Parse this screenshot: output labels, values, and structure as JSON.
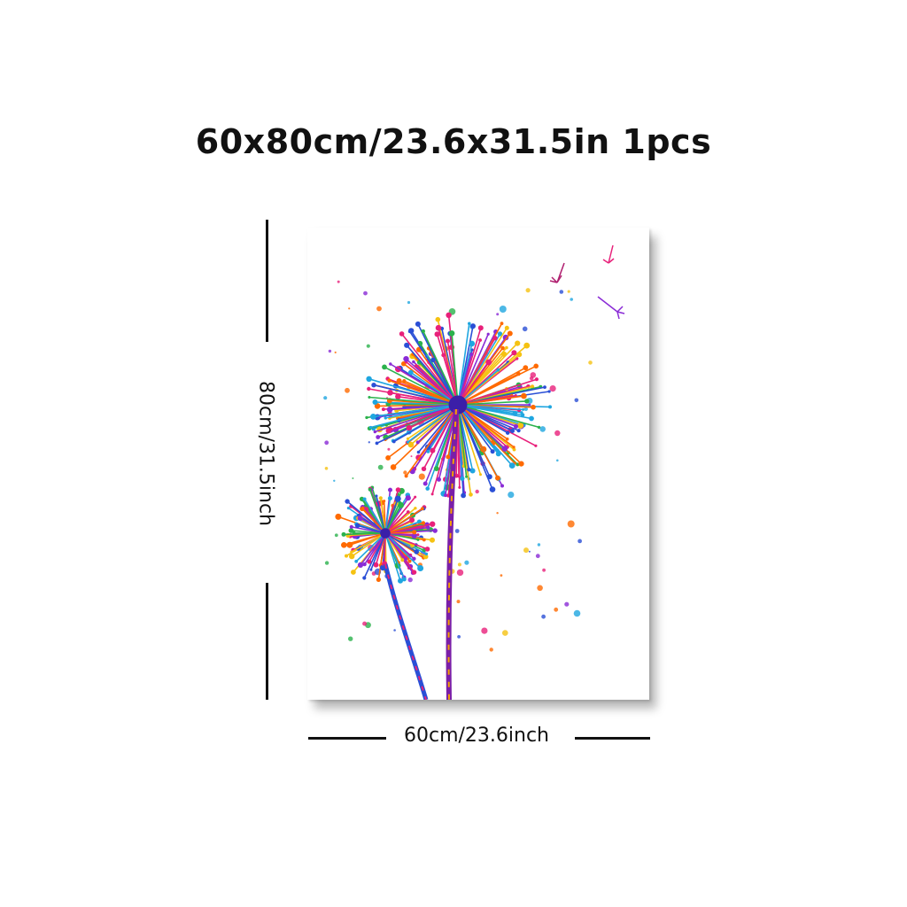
{
  "header": {
    "size_text": "60x80cm/23.6x31.5in 1pcs"
  },
  "dimensions": {
    "height_label": "80cm/31.5inch",
    "width_label": "60cm/23.6inch"
  },
  "artwork": {
    "subject": "dandelion-watercolor-icon",
    "colors": [
      "#e8207a",
      "#2a4fd6",
      "#f5c211",
      "#8a2bd6",
      "#1fa6e0",
      "#ff6a00",
      "#2bb24c"
    ]
  }
}
